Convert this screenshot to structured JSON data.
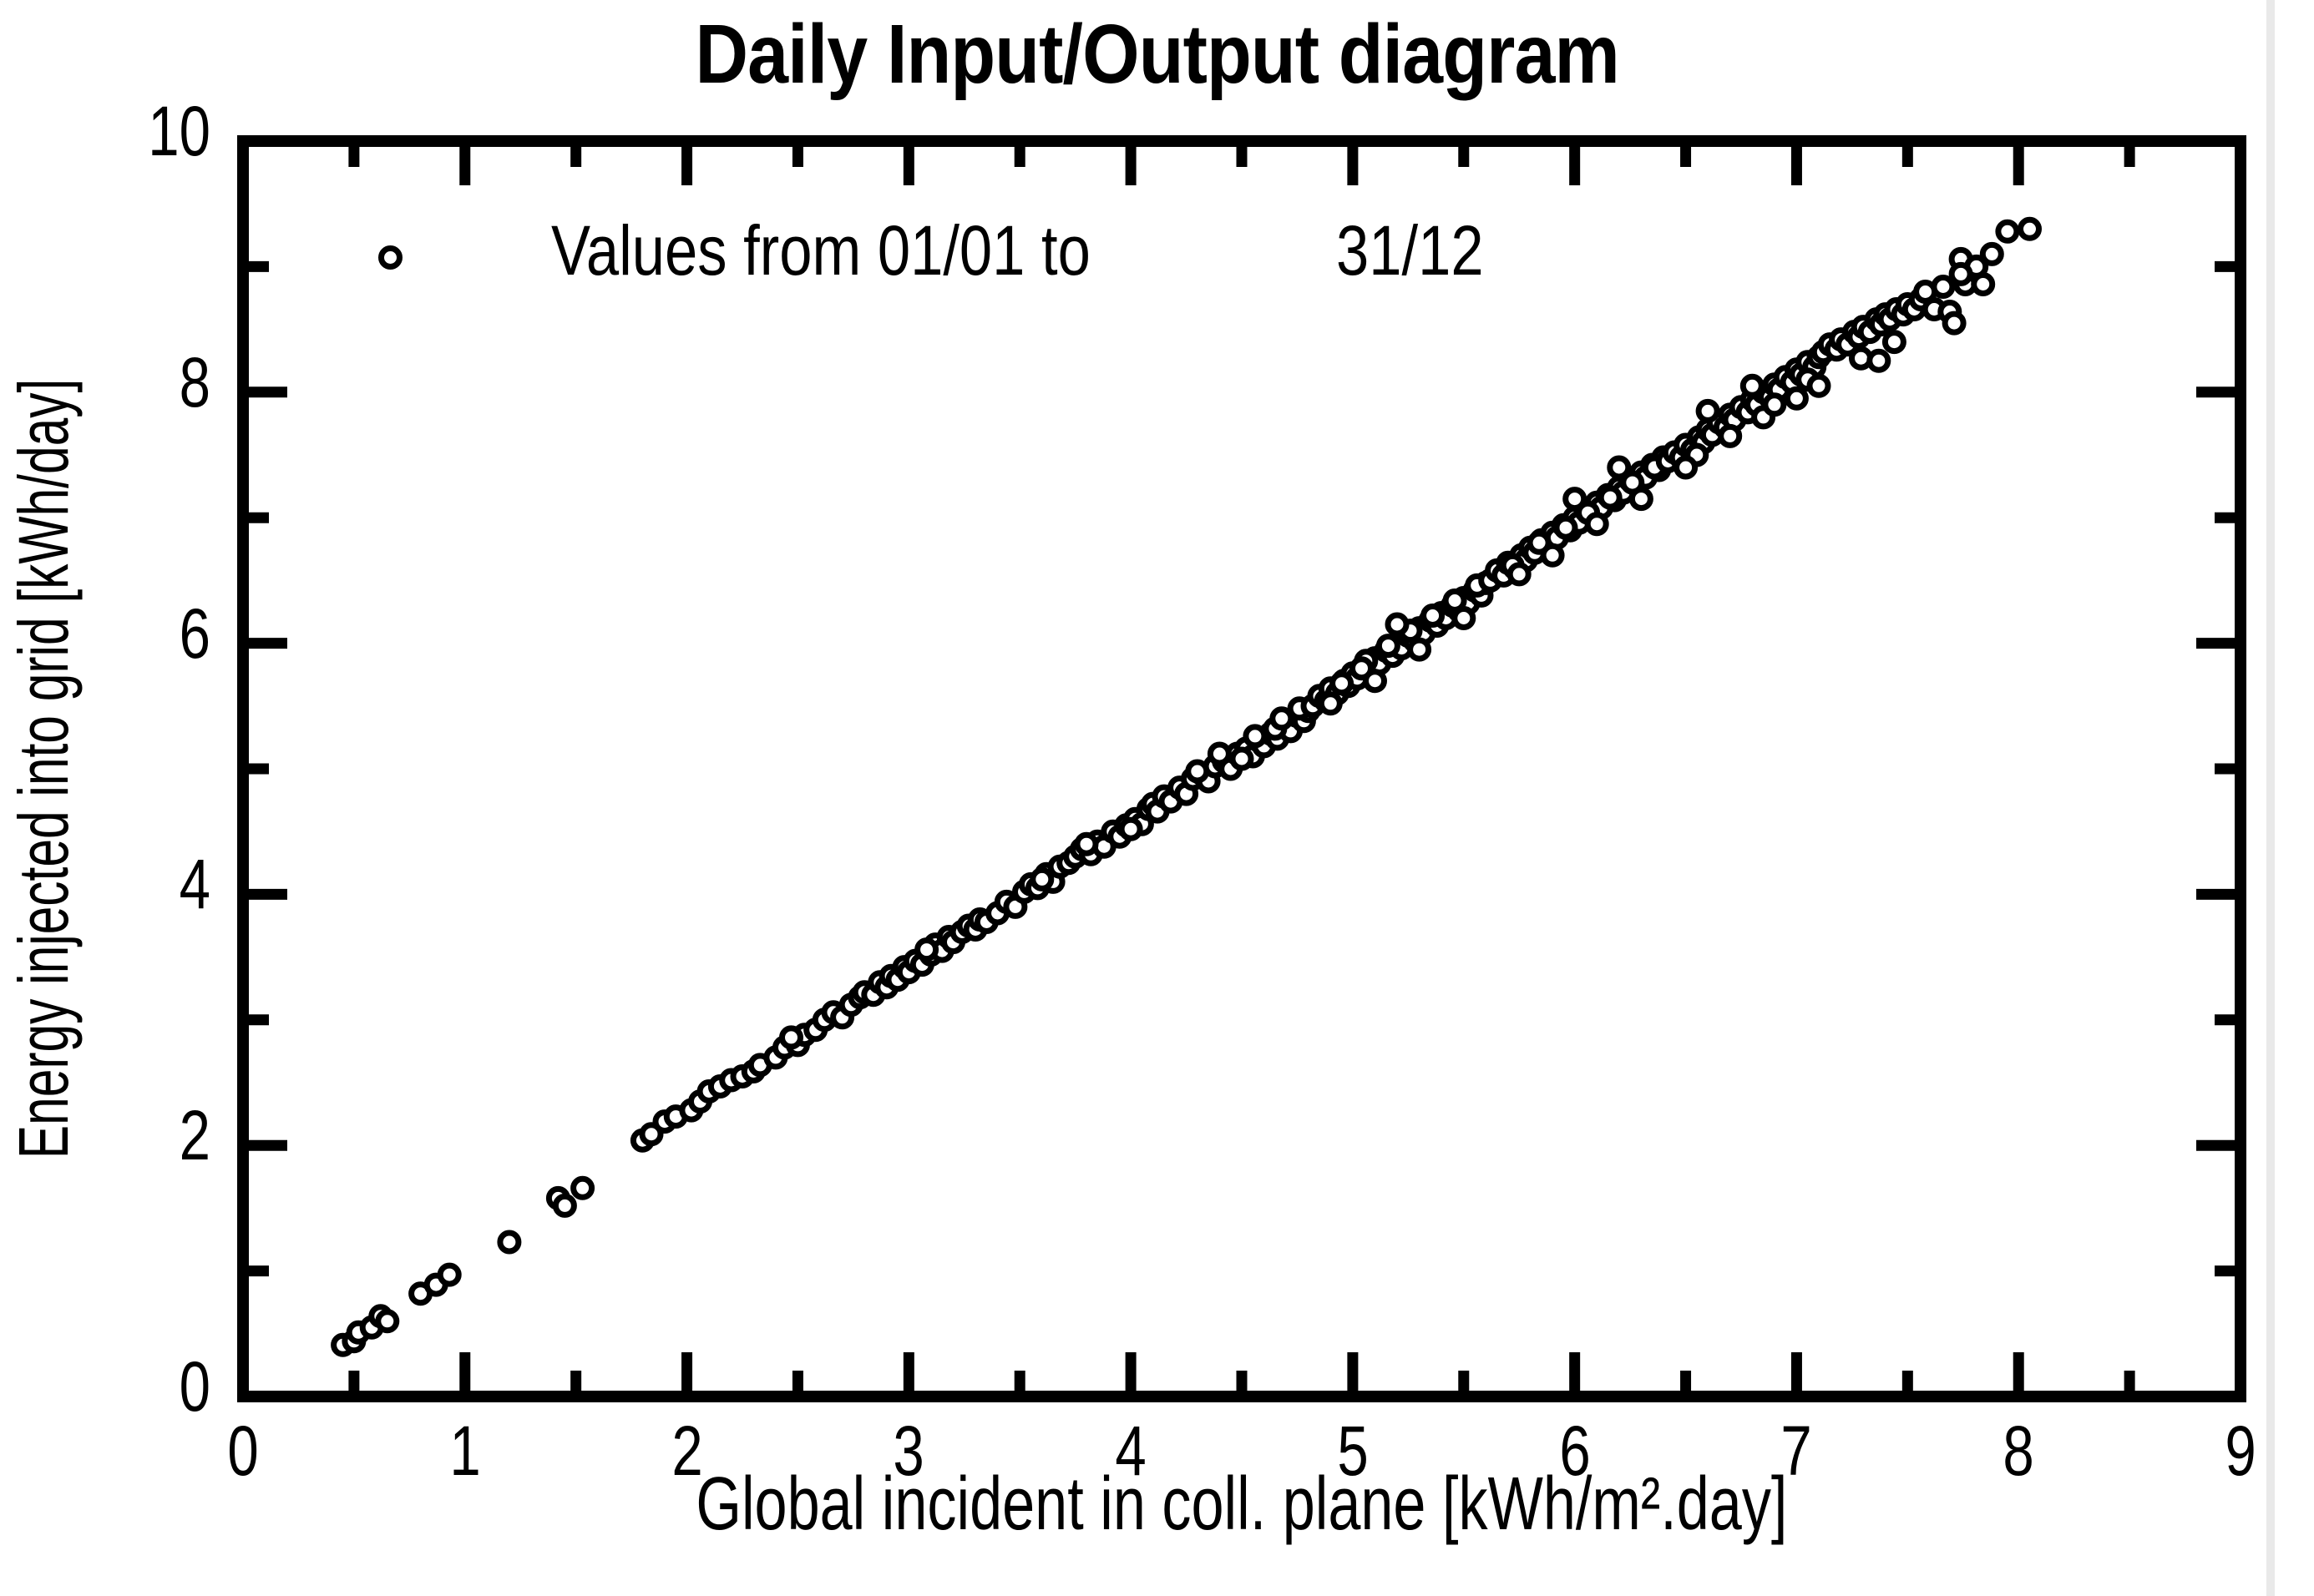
{
  "colors": {
    "foreground": "#000000",
    "background": "#ffffff",
    "right_edge_line": "#e9e9e9"
  },
  "legend": {
    "marker": "open-circle",
    "label": "Values from 01/01 to",
    "date_end": "31/12"
  },
  "chart_data": {
    "type": "scatter",
    "title": "Daily Input/Output diagram",
    "xlabel": "Global incident in coll. plane [kWh/m².day]",
    "ylabel": "Energy injected into grid [kWh/day]",
    "xlim": [
      0,
      9
    ],
    "ylim": [
      0,
      10
    ],
    "x_tick_values": [
      0,
      1,
      2,
      3,
      4,
      5,
      6,
      7,
      8,
      9
    ],
    "x_tick_labels": [
      "0",
      "1",
      "2",
      "3",
      "4",
      "5",
      "6",
      "7",
      "8",
      "9"
    ],
    "x_minor_step": 0.5,
    "y_tick_values": [
      0,
      2,
      4,
      6,
      8,
      10
    ],
    "y_tick_labels": [
      "0",
      "2",
      "4",
      "6",
      "8",
      "10"
    ],
    "y_minor_step": 1,
    "grid": false,
    "legend_position": "top-left-inside",
    "marker": {
      "shape": "open-circle",
      "fill": "#ffffff",
      "stroke": "#000000"
    },
    "series": [
      {
        "name": "Values from 01/01 to 31/12",
        "points": [
          [
            0.45,
            0.41
          ],
          [
            0.5,
            0.44
          ],
          [
            0.52,
            0.51
          ],
          [
            0.58,
            0.55
          ],
          [
            0.62,
            0.64
          ],
          [
            0.65,
            0.6
          ],
          [
            0.8,
            0.82
          ],
          [
            0.87,
            0.89
          ],
          [
            0.93,
            0.97
          ],
          [
            1.2,
            1.23
          ],
          [
            1.42,
            1.58
          ],
          [
            1.45,
            1.52
          ],
          [
            1.53,
            1.66
          ],
          [
            1.8,
            2.04
          ],
          [
            1.84,
            2.09
          ],
          [
            1.9,
            2.19
          ],
          [
            1.95,
            2.23
          ],
          [
            2.02,
            2.28
          ],
          [
            2.06,
            2.35
          ],
          [
            2.1,
            2.43
          ],
          [
            2.15,
            2.47
          ],
          [
            2.2,
            2.52
          ],
          [
            2.25,
            2.55
          ],
          [
            2.3,
            2.59
          ],
          [
            2.33,
            2.64
          ],
          [
            2.4,
            2.7
          ],
          [
            2.44,
            2.78
          ],
          [
            2.5,
            2.8
          ],
          [
            2.53,
            2.88
          ],
          [
            2.58,
            2.92
          ],
          [
            2.62,
            3.0
          ],
          [
            2.66,
            3.06
          ],
          [
            2.7,
            3.02
          ],
          [
            2.74,
            3.12
          ],
          [
            2.78,
            3.18
          ],
          [
            2.8,
            3.22
          ],
          [
            2.47,
            2.86
          ],
          [
            2.84,
            3.2
          ],
          [
            2.87,
            3.3
          ],
          [
            2.9,
            3.26
          ],
          [
            2.92,
            3.35
          ],
          [
            2.95,
            3.32
          ],
          [
            2.98,
            3.42
          ],
          [
            3.0,
            3.38
          ],
          [
            3.03,
            3.47
          ],
          [
            3.06,
            3.44
          ],
          [
            3.1,
            3.52
          ],
          [
            3.12,
            3.6
          ],
          [
            3.15,
            3.55
          ],
          [
            3.18,
            3.66
          ],
          [
            3.2,
            3.62
          ],
          [
            3.24,
            3.7
          ],
          [
            3.27,
            3.75
          ],
          [
            3.3,
            3.72
          ],
          [
            3.32,
            3.8
          ],
          [
            3.35,
            3.78
          ],
          [
            3.08,
            3.56
          ],
          [
            3.4,
            3.85
          ],
          [
            3.44,
            3.94
          ],
          [
            3.48,
            3.9
          ],
          [
            3.52,
            4.02
          ],
          [
            3.55,
            4.08
          ],
          [
            3.58,
            4.05
          ],
          [
            3.62,
            4.16
          ],
          [
            3.65,
            4.1
          ],
          [
            3.68,
            4.22
          ],
          [
            3.72,
            4.25
          ],
          [
            3.75,
            4.3
          ],
          [
            3.78,
            4.36
          ],
          [
            3.82,
            4.32
          ],
          [
            3.85,
            4.42
          ],
          [
            3.88,
            4.38
          ],
          [
            3.92,
            4.5
          ],
          [
            3.95,
            4.46
          ],
          [
            3.98,
            4.55
          ],
          [
            4.02,
            4.6
          ],
          [
            4.05,
            4.56
          ],
          [
            4.08,
            4.68
          ],
          [
            3.6,
            4.12
          ],
          [
            3.8,
            4.4
          ],
          [
            4.0,
            4.52
          ],
          [
            4.1,
            4.72
          ],
          [
            4.12,
            4.66
          ],
          [
            4.15,
            4.78
          ],
          [
            4.18,
            4.74
          ],
          [
            4.22,
            4.85
          ],
          [
            4.25,
            4.8
          ],
          [
            4.28,
            4.92
          ],
          [
            4.32,
            4.96
          ],
          [
            4.35,
            4.9
          ],
          [
            4.38,
            5.02
          ],
          [
            4.42,
            5.06
          ],
          [
            4.45,
            5.0
          ],
          [
            4.48,
            5.12
          ],
          [
            4.52,
            5.16
          ],
          [
            4.55,
            5.1
          ],
          [
            4.58,
            5.22
          ],
          [
            4.6,
            5.18
          ],
          [
            4.63,
            5.28
          ],
          [
            4.66,
            5.24
          ],
          [
            4.7,
            5.36
          ],
          [
            4.72,
            5.3
          ],
          [
            4.75,
            5.42
          ],
          [
            4.78,
            5.38
          ],
          [
            4.8,
            5.46
          ],
          [
            4.3,
            4.98
          ],
          [
            4.5,
            5.08
          ],
          [
            4.65,
            5.32
          ],
          [
            4.4,
            5.12
          ],
          [
            4.56,
            5.26
          ],
          [
            4.68,
            5.4
          ],
          [
            4.76,
            5.48
          ],
          [
            4.82,
            5.5
          ],
          [
            4.85,
            5.58
          ],
          [
            4.88,
            5.54
          ],
          [
            4.9,
            5.64
          ],
          [
            4.93,
            5.6
          ],
          [
            4.96,
            5.7
          ],
          [
            4.98,
            5.66
          ],
          [
            5.0,
            5.76
          ],
          [
            5.02,
            5.72
          ],
          [
            5.05,
            5.82
          ],
          [
            5.08,
            5.78
          ],
          [
            5.1,
            5.88
          ],
          [
            5.12,
            5.84
          ],
          [
            5.15,
            5.94
          ],
          [
            5.18,
            5.9
          ],
          [
            5.2,
            6.0
          ],
          [
            5.22,
            5.96
          ],
          [
            5.25,
            6.06
          ],
          [
            5.28,
            6.02
          ],
          [
            5.3,
            6.12
          ],
          [
            5.32,
            6.08
          ],
          [
            5.35,
            6.18
          ],
          [
            5.38,
            6.14
          ],
          [
            5.4,
            6.24
          ],
          [
            5.42,
            6.2
          ],
          [
            5.45,
            6.3
          ],
          [
            5.48,
            6.26
          ],
          [
            5.5,
            6.36
          ],
          [
            5.52,
            6.32
          ],
          [
            5.55,
            6.42
          ],
          [
            5.58,
            6.38
          ],
          [
            5.6,
            6.48
          ],
          [
            4.95,
            5.68
          ],
          [
            5.06,
            5.86
          ],
          [
            5.16,
            5.98
          ],
          [
            5.26,
            6.1
          ],
          [
            5.36,
            6.22
          ],
          [
            5.46,
            6.34
          ],
          [
            5.56,
            6.46
          ],
          [
            5.04,
            5.8
          ],
          [
            5.1,
            5.7
          ],
          [
            5.3,
            5.95
          ],
          [
            5.5,
            6.2
          ],
          [
            4.9,
            5.52
          ],
          [
            5.2,
            6.15
          ],
          [
            5.62,
            6.5
          ],
          [
            5.65,
            6.58
          ],
          [
            5.68,
            6.54
          ],
          [
            5.7,
            6.64
          ],
          [
            5.73,
            6.6
          ],
          [
            5.76,
            6.7
          ],
          [
            5.78,
            6.66
          ],
          [
            5.8,
            6.76
          ],
          [
            5.82,
            6.72
          ],
          [
            5.85,
            6.82
          ],
          [
            5.88,
            6.78
          ],
          [
            5.9,
            6.88
          ],
          [
            5.92,
            6.84
          ],
          [
            5.95,
            6.94
          ],
          [
            5.98,
            6.9
          ],
          [
            6.0,
            7.0
          ],
          [
            6.02,
            6.96
          ],
          [
            6.05,
            7.06
          ],
          [
            6.08,
            7.02
          ],
          [
            6.1,
            7.12
          ],
          [
            6.12,
            7.08
          ],
          [
            6.15,
            7.18
          ],
          [
            6.18,
            7.14
          ],
          [
            6.2,
            7.24
          ],
          [
            6.22,
            7.2
          ],
          [
            6.25,
            7.3
          ],
          [
            6.28,
            7.26
          ],
          [
            6.3,
            7.36
          ],
          [
            6.32,
            7.32
          ],
          [
            6.35,
            7.42
          ],
          [
            6.38,
            7.38
          ],
          [
            6.4,
            7.48
          ],
          [
            5.72,
            6.62
          ],
          [
            5.84,
            6.8
          ],
          [
            5.96,
            6.92
          ],
          [
            6.06,
            7.04
          ],
          [
            6.16,
            7.16
          ],
          [
            6.26,
            7.28
          ],
          [
            6.36,
            7.4
          ],
          [
            5.9,
            6.7
          ],
          [
            6.1,
            6.95
          ],
          [
            6.3,
            7.15
          ],
          [
            5.75,
            6.55
          ],
          [
            6.0,
            7.15
          ],
          [
            6.2,
            7.4
          ],
          [
            6.42,
            7.45
          ],
          [
            6.45,
            7.52
          ],
          [
            6.48,
            7.48
          ],
          [
            6.5,
            7.58
          ],
          [
            6.53,
            7.54
          ],
          [
            6.56,
            7.64
          ],
          [
            6.58,
            7.6
          ],
          [
            6.6,
            7.7
          ],
          [
            6.62,
            7.66
          ],
          [
            6.65,
            7.76
          ],
          [
            6.68,
            7.72
          ],
          [
            6.7,
            7.82
          ],
          [
            6.72,
            7.78
          ],
          [
            6.75,
            7.88
          ],
          [
            6.78,
            7.84
          ],
          [
            6.8,
            7.94
          ],
          [
            6.82,
            7.9
          ],
          [
            6.85,
            8.0
          ],
          [
            6.88,
            7.96
          ],
          [
            6.9,
            8.06
          ],
          [
            6.92,
            8.02
          ],
          [
            6.95,
            8.12
          ],
          [
            6.98,
            8.08
          ],
          [
            7.0,
            8.18
          ],
          [
            7.02,
            8.14
          ],
          [
            7.05,
            8.24
          ],
          [
            7.08,
            8.2
          ],
          [
            7.1,
            8.28
          ],
          [
            6.55,
            7.5
          ],
          [
            6.7,
            7.65
          ],
          [
            6.85,
            7.8
          ],
          [
            7.0,
            7.95
          ],
          [
            6.6,
            7.85
          ],
          [
            6.8,
            8.05
          ],
          [
            7.05,
            8.1
          ],
          [
            6.5,
            7.4
          ],
          [
            6.9,
            7.9
          ],
          [
            7.1,
            8.05
          ],
          [
            7.12,
            8.32
          ],
          [
            7.15,
            8.38
          ],
          [
            7.18,
            8.34
          ],
          [
            7.2,
            8.42
          ],
          [
            7.23,
            8.38
          ],
          [
            7.26,
            8.48
          ],
          [
            7.28,
            8.44
          ],
          [
            7.3,
            8.52
          ],
          [
            7.33,
            8.48
          ],
          [
            7.36,
            8.58
          ],
          [
            7.38,
            8.54
          ],
          [
            7.4,
            8.62
          ],
          [
            7.42,
            8.58
          ],
          [
            7.45,
            8.66
          ],
          [
            7.48,
            8.62
          ],
          [
            7.5,
            8.7
          ],
          [
            7.53,
            8.66
          ],
          [
            7.56,
            8.74
          ],
          [
            7.29,
            8.27
          ],
          [
            7.44,
            8.4
          ],
          [
            7.37,
            8.25
          ],
          [
            7.58,
            8.8
          ],
          [
            7.62,
            8.66
          ],
          [
            7.66,
            8.84
          ],
          [
            7.69,
            8.64
          ],
          [
            7.71,
            8.55
          ],
          [
            7.74,
            9.06
          ],
          [
            7.76,
            8.86
          ],
          [
            7.81,
            9.0
          ],
          [
            7.84,
            8.86
          ],
          [
            7.88,
            9.1
          ],
          [
            7.74,
            8.94
          ],
          [
            7.95,
            9.28
          ],
          [
            8.05,
            9.3
          ]
        ]
      }
    ]
  }
}
